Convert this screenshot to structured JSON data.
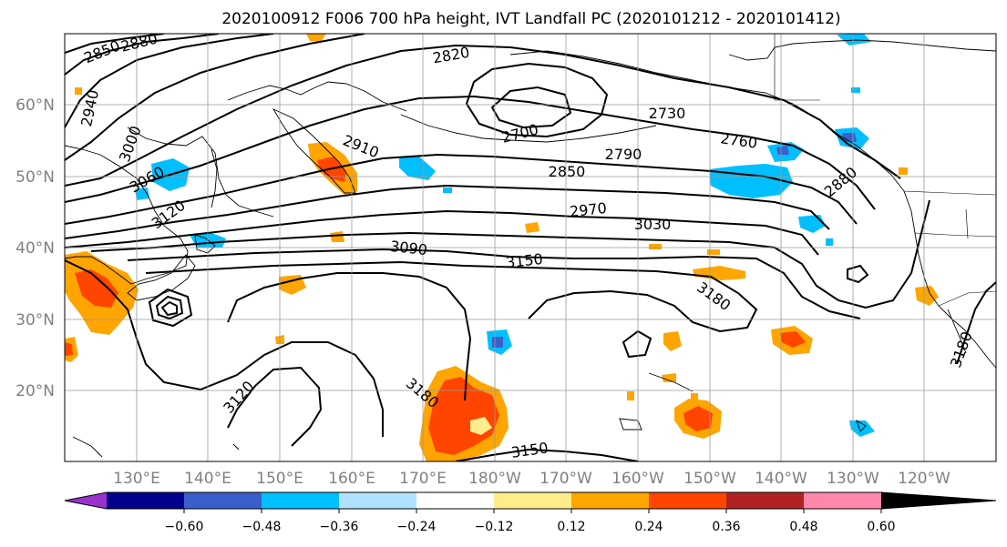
{
  "title": "2020100912 F006 700 hPa height, IVT Landfall PC (2020101212 - 2020101412)",
  "lat_labels": [
    "60°N",
    "50°N",
    "40°N",
    "30°N",
    "20°N"
  ],
  "lon_labels": [
    "130°E",
    "140°E",
    "150°E",
    "160°E",
    "170°E",
    "180°W",
    "170°W",
    "160°W",
    "150°W",
    "140°W",
    "130°W",
    "120°W"
  ],
  "contour_labels": [
    "2850",
    "2880",
    "2940",
    "3000",
    "3060",
    "3120",
    "2820",
    "2700",
    "2730",
    "2760",
    "2790",
    "2850",
    "2910",
    "2970",
    "3030",
    "3090",
    "3150",
    "3180",
    "2880",
    "3120",
    "3180",
    "3150",
    "3180"
  ],
  "colorbar": {
    "ticks": [
      "−0.60",
      "−0.48",
      "−0.36",
      "−0.24",
      "−0.12",
      "0.12",
      "0.24",
      "0.36",
      "0.48",
      "0.60"
    ],
    "colors": [
      "#9932cc",
      "#00008b",
      "#3a5fcd",
      "#00bfff",
      "#b0e2ff",
      "#ffffff",
      "#ffec8b",
      "#ffa500",
      "#ff4500",
      "#b22222",
      "#ff87ab"
    ]
  },
  "map_extent": {
    "lon": [
      120,
      250
    ],
    "lat": [
      10,
      70
    ]
  }
}
